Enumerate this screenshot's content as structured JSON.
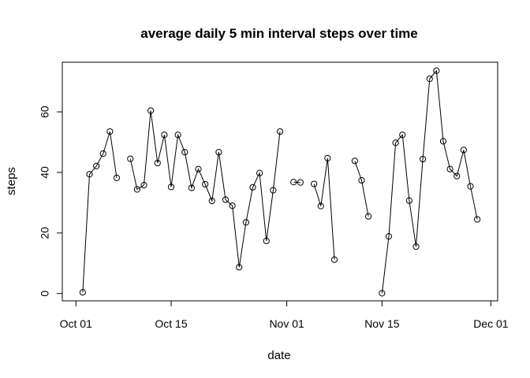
{
  "chart_data": {
    "type": "line",
    "title": "average daily 5 min interval steps over time",
    "xlabel": "date",
    "ylabel": "steps",
    "xlim": [
      "2012-09-29",
      "2012-12-02"
    ],
    "ylim": [
      -2.4,
      76.4
    ],
    "x_ticks": [
      {
        "date": "2012-10-01",
        "label": "Oct 01"
      },
      {
        "date": "2012-10-15",
        "label": "Oct 15"
      },
      {
        "date": "2012-11-01",
        "label": "Nov 01"
      },
      {
        "date": "2012-11-15",
        "label": "Nov 15"
      },
      {
        "date": "2012-12-01",
        "label": "Dec 01"
      }
    ],
    "y_ticks": [
      0,
      20,
      40,
      60
    ],
    "points_marked": true,
    "series": [
      {
        "x": [
          "2012-10-01",
          "2012-10-02",
          "2012-10-03",
          "2012-10-04",
          "2012-10-05",
          "2012-10-06",
          "2012-10-07",
          "2012-10-08",
          "2012-10-09",
          "2012-10-10",
          "2012-10-11",
          "2012-10-12",
          "2012-10-13",
          "2012-10-14",
          "2012-10-15",
          "2012-10-16",
          "2012-10-17",
          "2012-10-18",
          "2012-10-19",
          "2012-10-20",
          "2012-10-21",
          "2012-10-22",
          "2012-10-23",
          "2012-10-24",
          "2012-10-25",
          "2012-10-26",
          "2012-10-27",
          "2012-10-28",
          "2012-10-29",
          "2012-10-30",
          "2012-10-31",
          "2012-11-01",
          "2012-11-02",
          "2012-11-03",
          "2012-11-04",
          "2012-11-05",
          "2012-11-06",
          "2012-11-07",
          "2012-11-08",
          "2012-11-09",
          "2012-11-10",
          "2012-11-11",
          "2012-11-12",
          "2012-11-13",
          "2012-11-14",
          "2012-11-15",
          "2012-11-16",
          "2012-11-17",
          "2012-11-18",
          "2012-11-19",
          "2012-11-20",
          "2012-11-21",
          "2012-11-22",
          "2012-11-23",
          "2012-11-24",
          "2012-11-25",
          "2012-11-26",
          "2012-11-27",
          "2012-11-28",
          "2012-11-29",
          "2012-11-30"
        ],
        "y": [
          null,
          0.4,
          39.4,
          42.1,
          46.2,
          53.5,
          38.2,
          null,
          44.5,
          34.4,
          35.8,
          60.4,
          43.1,
          52.4,
          35.2,
          52.4,
          46.7,
          34.9,
          41.1,
          36.1,
          30.6,
          46.7,
          31.0,
          29.0,
          8.7,
          23.5,
          35.1,
          39.8,
          17.4,
          34.1,
          53.5,
          null,
          36.8,
          36.7,
          null,
          36.2,
          28.9,
          44.7,
          11.2,
          null,
          null,
          43.8,
          37.4,
          25.5,
          null,
          0.1,
          18.9,
          49.8,
          52.4,
          30.7,
          15.5,
          44.4,
          70.9,
          73.6,
          50.3,
          41.1,
          38.8,
          47.4,
          35.4,
          24.5,
          null
        ]
      }
    ]
  }
}
